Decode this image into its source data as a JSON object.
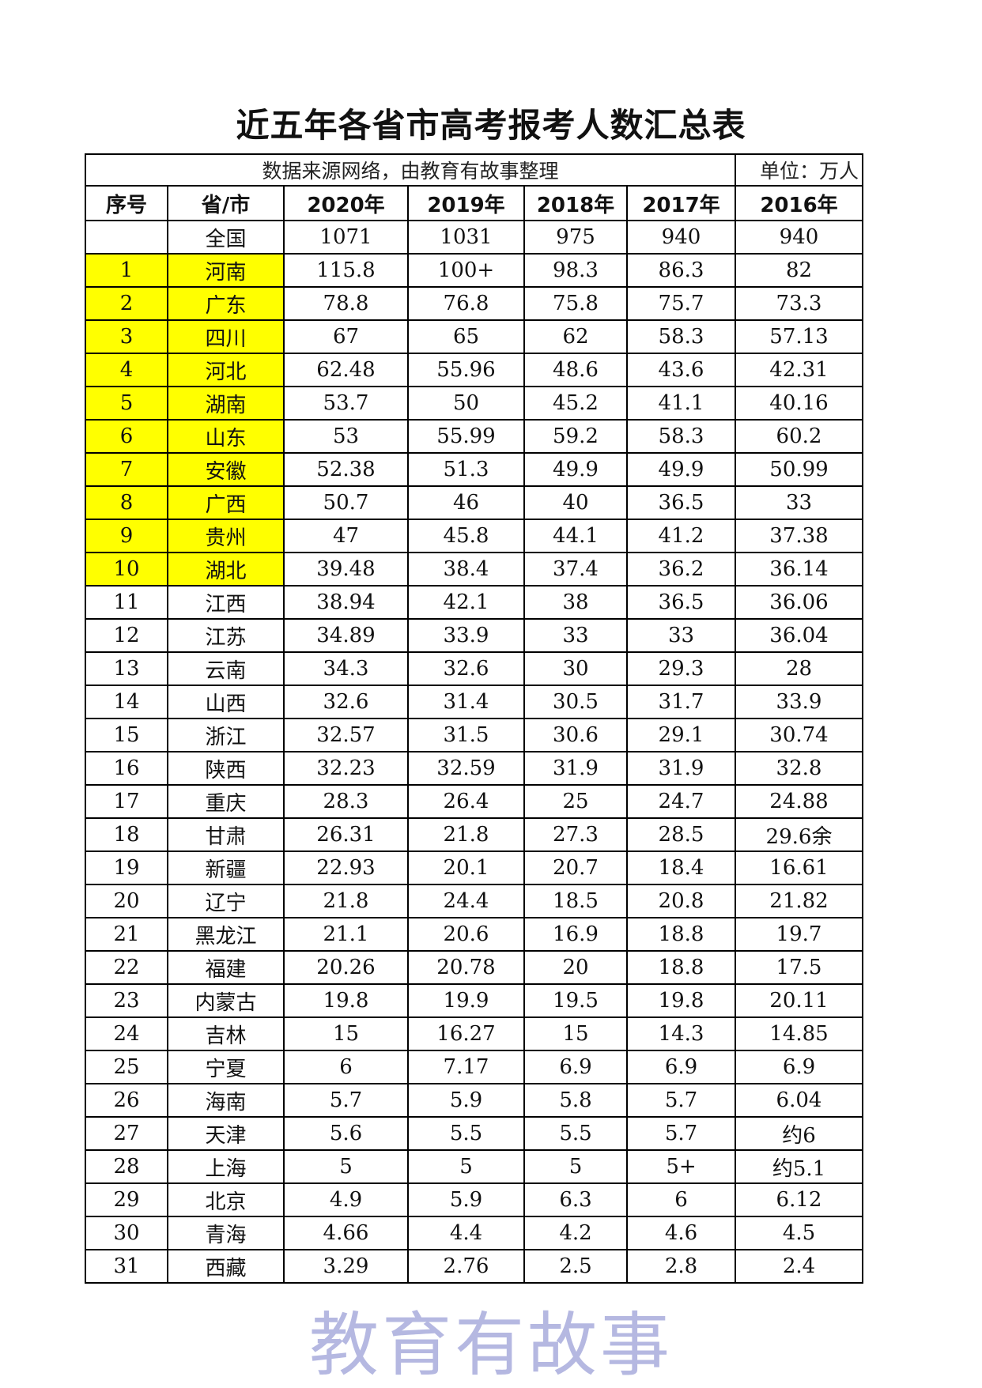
{
  "title": "近五年各省市高考报考人数汇总表",
  "source_note": "数据来源网络，由教育有故事整理",
  "unit": "单位：万人",
  "headers": [
    "序号",
    "省/市",
    "2020年",
    "2019年",
    "2018年",
    "2017年",
    "2016年"
  ],
  "highlight_color": "#ffff00",
  "watermark": "教育有故事",
  "rows": [
    {
      "no": "",
      "name": "全国",
      "v": [
        "1071",
        "1031",
        "975",
        "940",
        "940"
      ],
      "highlight": false
    },
    {
      "no": "1",
      "name": "河南",
      "v": [
        "115.8",
        "100+",
        "98.3",
        "86.3",
        "82"
      ],
      "highlight": true
    },
    {
      "no": "2",
      "name": "广东",
      "v": [
        "78.8",
        "76.8",
        "75.8",
        "75.7",
        "73.3"
      ],
      "highlight": true
    },
    {
      "no": "3",
      "name": "四川",
      "v": [
        "67",
        "65",
        "62",
        "58.3",
        "57.13"
      ],
      "highlight": true
    },
    {
      "no": "4",
      "name": "河北",
      "v": [
        "62.48",
        "55.96",
        "48.6",
        "43.6",
        "42.31"
      ],
      "highlight": true
    },
    {
      "no": "5",
      "name": "湖南",
      "v": [
        "53.7",
        "50",
        "45.2",
        "41.1",
        "40.16"
      ],
      "highlight": true
    },
    {
      "no": "6",
      "name": "山东",
      "v": [
        "53",
        "55.99",
        "59.2",
        "58.3",
        "60.2"
      ],
      "highlight": true
    },
    {
      "no": "7",
      "name": "安徽",
      "v": [
        "52.38",
        "51.3",
        "49.9",
        "49.9",
        "50.99"
      ],
      "highlight": true
    },
    {
      "no": "8",
      "name": "广西",
      "v": [
        "50.7",
        "46",
        "40",
        "36.5",
        "33"
      ],
      "highlight": true
    },
    {
      "no": "9",
      "name": "贵州",
      "v": [
        "47",
        "45.8",
        "44.1",
        "41.2",
        "37.38"
      ],
      "highlight": true
    },
    {
      "no": "10",
      "name": "湖北",
      "v": [
        "39.48",
        "38.4",
        "37.4",
        "36.2",
        "36.14"
      ],
      "highlight": true
    },
    {
      "no": "11",
      "name": "江西",
      "v": [
        "38.94",
        "42.1",
        "38",
        "36.5",
        "36.06"
      ],
      "highlight": false
    },
    {
      "no": "12",
      "name": "江苏",
      "v": [
        "34.89",
        "33.9",
        "33",
        "33",
        "36.04"
      ],
      "highlight": false
    },
    {
      "no": "13",
      "name": "云南",
      "v": [
        "34.3",
        "32.6",
        "30",
        "29.3",
        "28"
      ],
      "highlight": false
    },
    {
      "no": "14",
      "name": "山西",
      "v": [
        "32.6",
        "31.4",
        "30.5",
        "31.7",
        "33.9"
      ],
      "highlight": false
    },
    {
      "no": "15",
      "name": "浙江",
      "v": [
        "32.57",
        "31.5",
        "30.6",
        "29.1",
        "30.74"
      ],
      "highlight": false
    },
    {
      "no": "16",
      "name": "陕西",
      "v": [
        "32.23",
        "32.59",
        "31.9",
        "31.9",
        "32.8"
      ],
      "highlight": false
    },
    {
      "no": "17",
      "name": "重庆",
      "v": [
        "28.3",
        "26.4",
        "25",
        "24.7",
        "24.88"
      ],
      "highlight": false
    },
    {
      "no": "18",
      "name": "甘肃",
      "v": [
        "26.31",
        "21.8",
        "27.3",
        "28.5",
        "29.6余"
      ],
      "highlight": false
    },
    {
      "no": "19",
      "name": "新疆",
      "v": [
        "22.93",
        "20.1",
        "20.7",
        "18.4",
        "16.61"
      ],
      "highlight": false
    },
    {
      "no": "20",
      "name": "辽宁",
      "v": [
        "21.8",
        "24.4",
        "18.5",
        "20.8",
        "21.82"
      ],
      "highlight": false
    },
    {
      "no": "21",
      "name": "黑龙江",
      "v": [
        "21.1",
        "20.6",
        "16.9",
        "18.8",
        "19.7"
      ],
      "highlight": false
    },
    {
      "no": "22",
      "name": "福建",
      "v": [
        "20.26",
        "20.78",
        "20",
        "18.8",
        "17.5"
      ],
      "highlight": false
    },
    {
      "no": "23",
      "name": "内蒙古",
      "v": [
        "19.8",
        "19.9",
        "19.5",
        "19.8",
        "20.11"
      ],
      "highlight": false
    },
    {
      "no": "24",
      "name": "吉林",
      "v": [
        "15",
        "16.27",
        "15",
        "14.3",
        "14.85"
      ],
      "highlight": false
    },
    {
      "no": "25",
      "name": "宁夏",
      "v": [
        "6",
        "7.17",
        "6.9",
        "6.9",
        "6.9"
      ],
      "highlight": false
    },
    {
      "no": "26",
      "name": "海南",
      "v": [
        "5.7",
        "5.9",
        "5.8",
        "5.7",
        "6.04"
      ],
      "highlight": false
    },
    {
      "no": "27",
      "name": "天津",
      "v": [
        "5.6",
        "5.5",
        "5.5",
        "5.7",
        "约6"
      ],
      "highlight": false
    },
    {
      "no": "28",
      "name": "上海",
      "v": [
        "5",
        "5",
        "5",
        "5+",
        "约5.1"
      ],
      "highlight": false
    },
    {
      "no": "29",
      "name": "北京",
      "v": [
        "4.9",
        "5.9",
        "6.3",
        "6",
        "6.12"
      ],
      "highlight": false
    },
    {
      "no": "30",
      "name": "青海",
      "v": [
        "4.66",
        "4.4",
        "4.2",
        "4.6",
        "4.5"
      ],
      "highlight": false
    },
    {
      "no": "31",
      "name": "西藏",
      "v": [
        "3.29",
        "2.76",
        "2.5",
        "2.8",
        "2.4"
      ],
      "highlight": false
    }
  ]
}
